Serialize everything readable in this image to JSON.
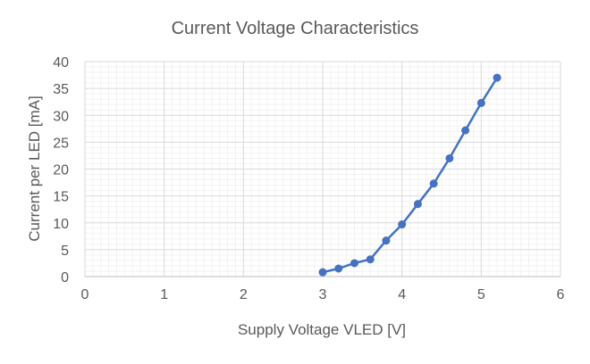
{
  "chart_data": {
    "type": "scatter",
    "title": "Current Voltage Characteristics",
    "xlabel": "Supply Voltage VLED [V]",
    "ylabel": "Current per LED [mA]",
    "xlim": [
      0,
      6
    ],
    "ylim": [
      0,
      40
    ],
    "x_major_ticks": [
      0,
      1,
      2,
      3,
      4,
      5,
      6
    ],
    "y_major_ticks": [
      0,
      5,
      10,
      15,
      20,
      25,
      30,
      35,
      40
    ],
    "grid": true,
    "legend": "none",
    "series": [
      {
        "color": "#4472C4",
        "line": true,
        "markers": true,
        "x": [
          3.0,
          3.2,
          3.4,
          3.6,
          3.8,
          4.0,
          4.2,
          4.4,
          4.6,
          4.8,
          5.0,
          5.2
        ],
        "y": [
          0.8,
          1.5,
          2.5,
          3.2,
          6.7,
          9.7,
          13.5,
          17.3,
          22.0,
          27.2,
          32.3,
          37.0
        ]
      }
    ]
  }
}
